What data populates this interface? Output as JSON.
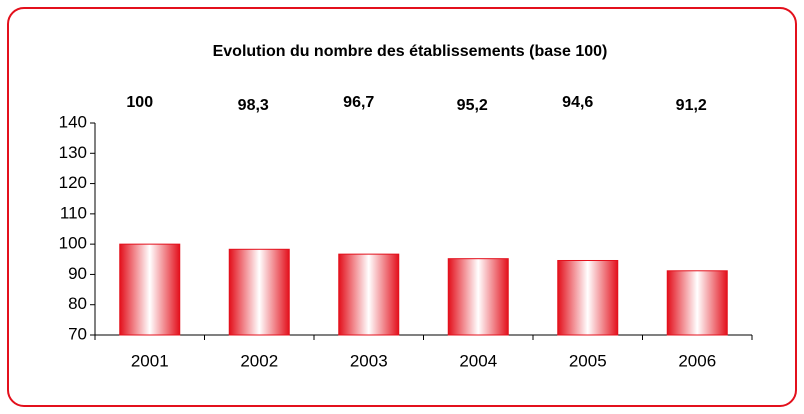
{
  "chart_data": {
    "type": "bar",
    "title": "Evolution du nombre des établissements (base 100)",
    "categories": [
      "2001",
      "2002",
      "2003",
      "2004",
      "2005",
      "2006"
    ],
    "values": [
      100,
      98.3,
      96.7,
      95.2,
      94.6,
      91.2
    ],
    "value_labels": [
      "100",
      "98,3",
      "96,7",
      "95,2",
      "94,6",
      "91,2"
    ],
    "color": "#e3101c",
    "ylim": [
      70,
      140
    ],
    "yticks": [
      70,
      80,
      90,
      100,
      110,
      120,
      130,
      140
    ],
    "grid": false
  }
}
